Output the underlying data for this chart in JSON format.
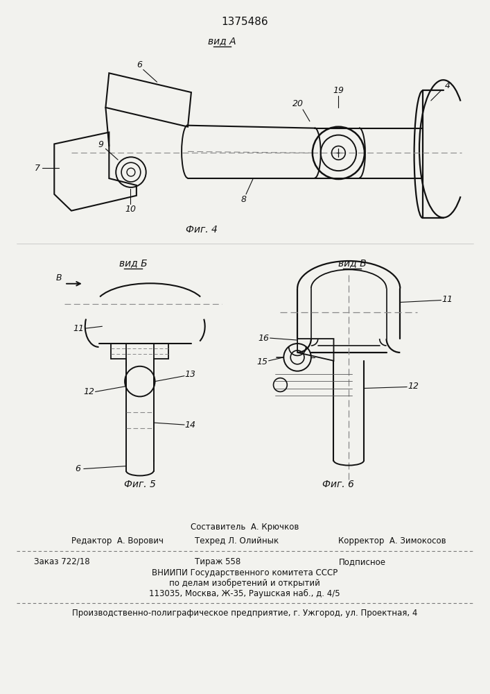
{
  "patent_number": "1375486",
  "vid_a_label": "вид А",
  "vid_b_label": "вид Б",
  "vid_v_label": "вид В",
  "fig4_label": "Фиг. 4",
  "fig5_label": "Фиг. 5",
  "fig6_label": "Фиг. 6",
  "bg_color": "#f2f2ee",
  "line_color": "#111111",
  "footer_line0": "Составитель  А. Крючков",
  "footer_line1_left": "Редактор  А. Ворович",
  "footer_line1_mid": "Техред Л. Олийнык",
  "footer_line1_right": "Корректор  А. Зимокосов",
  "footer_line2_left": "Заказ 722/18",
  "footer_line2_mid": "Тираж 558",
  "footer_line2_right": "Подписное",
  "footer_line3": "ВНИИПИ Государственного комитета СССР",
  "footer_line4": "по делам изобретений и открытий",
  "footer_line5": "113035, Москва, Ж-35, Раушская наб., д. 4/5",
  "footer_line6": "Производственно-полиграфическое предприятие, г. Ужгород, ул. Проектная, 4"
}
